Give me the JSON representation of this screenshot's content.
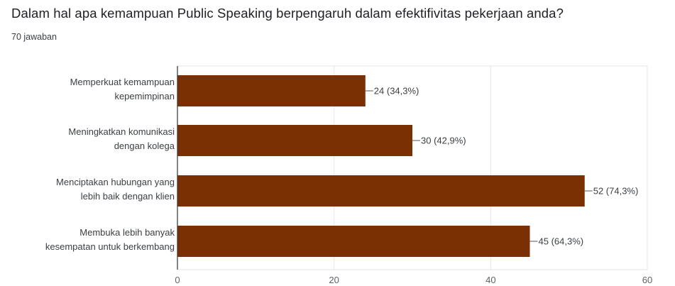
{
  "question": {
    "title": "Dalam hal apa kemampuan Public Speaking berpengaruh dalam efektifivitas pekerjaan anda?",
    "response_count": "70 jawaban"
  },
  "chart_data": {
    "type": "bar",
    "orientation": "horizontal",
    "categories": [
      [
        "Memperkuat kemampuan",
        "kepemimpinan"
      ],
      [
        "Meningkatkan komunikasi",
        "dengan kolega"
      ],
      [
        "Menciptakan hubungan yang",
        "lebih baik dengan klien"
      ],
      [
        "Membuka lebih banyak",
        "kesempatan untuk berkembang"
      ]
    ],
    "values": [
      24,
      30,
      52,
      45
    ],
    "data_labels": [
      "24 (34,3%)",
      "30 (42,9%)",
      "52 (74,3%)",
      "45 (64,3%)"
    ],
    "xlim": [
      0,
      60
    ],
    "ticks": [
      0,
      20,
      40,
      60
    ],
    "tick_labels": [
      "0",
      "20",
      "40",
      "60"
    ],
    "grid": true,
    "legend": "none",
    "colors": {
      "bar": "#7b3003",
      "grid": "#e6e6e6",
      "axis": "#333333",
      "leader": "#555555"
    }
  }
}
